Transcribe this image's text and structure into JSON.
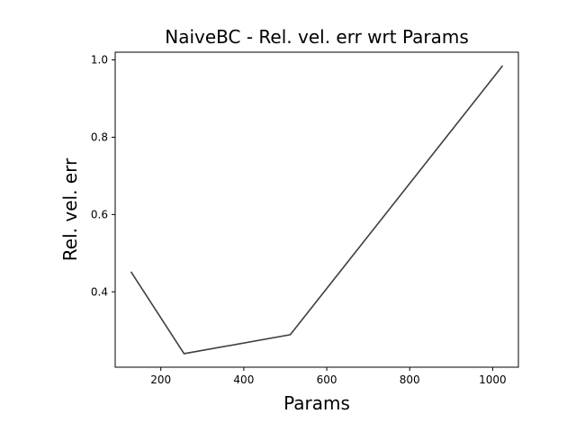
{
  "chart_data": {
    "type": "line",
    "title": "NaiveBC - Rel. vel. err wrt Params",
    "xlabel": "Params",
    "ylabel": "Rel. vel. err",
    "x": [
      128,
      256,
      512,
      1024
    ],
    "series": [
      {
        "values": [
          0.452,
          0.24,
          0.289,
          0.985
        ],
        "color": "#404040"
      }
    ],
    "xlim": [
      90,
      1062
    ],
    "ylim": [
      0.205,
      1.02
    ],
    "xticks": [
      200,
      400,
      600,
      800,
      1000
    ],
    "yticks": [
      0.4,
      0.6,
      0.8,
      1.0
    ],
    "xtick_labels": [
      "200",
      "400",
      "600",
      "800",
      "1000"
    ],
    "ytick_labels": [
      "0.4",
      "0.6",
      "0.8",
      "1.0"
    ],
    "grid": false,
    "legend": "none"
  }
}
